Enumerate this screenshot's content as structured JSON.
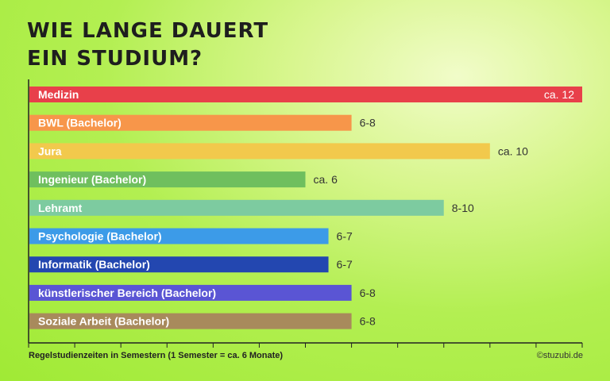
{
  "title_lines": [
    "Wie lange dauert",
    "ein Studium?"
  ],
  "footer": "Regelstudienzeiten in Semestern (1 Semester = ca. 6 Monate)",
  "credit": "©stuzubi.de",
  "chart_data": {
    "type": "bar",
    "orientation": "horizontal",
    "title": "Wie lange dauert ein Studium?",
    "xlabel": "Regelstudienzeiten in Semestern (1 Semester = ca. 6 Monate)",
    "xlim": [
      0,
      12
    ],
    "grid": false,
    "categories": [
      "Medizin",
      "BWL (Bachelor)",
      "Jura",
      "Ingenieur (Bachelor)",
      "Lehramt",
      "Psychologie (Bachelor)",
      "Informatik (Bachelor)",
      "künstlerischer Bereich (Bachelor)",
      "Soziale Arbeit (Bachelor)"
    ],
    "values": [
      12,
      7,
      10,
      6,
      9,
      6.5,
      6.5,
      7,
      7
    ],
    "value_labels": [
      "ca. 12",
      "6-8",
      "ca. 10",
      "ca. 6",
      "8-10",
      "6-7",
      "6-7",
      "6-8",
      "6-8"
    ],
    "colors": [
      "#e8404a",
      "#f7964a",
      "#f2c94c",
      "#6fbf5e",
      "#7dcba0",
      "#3c9be8",
      "#2347b0",
      "#5a55d4",
      "#a88a5c"
    ]
  }
}
